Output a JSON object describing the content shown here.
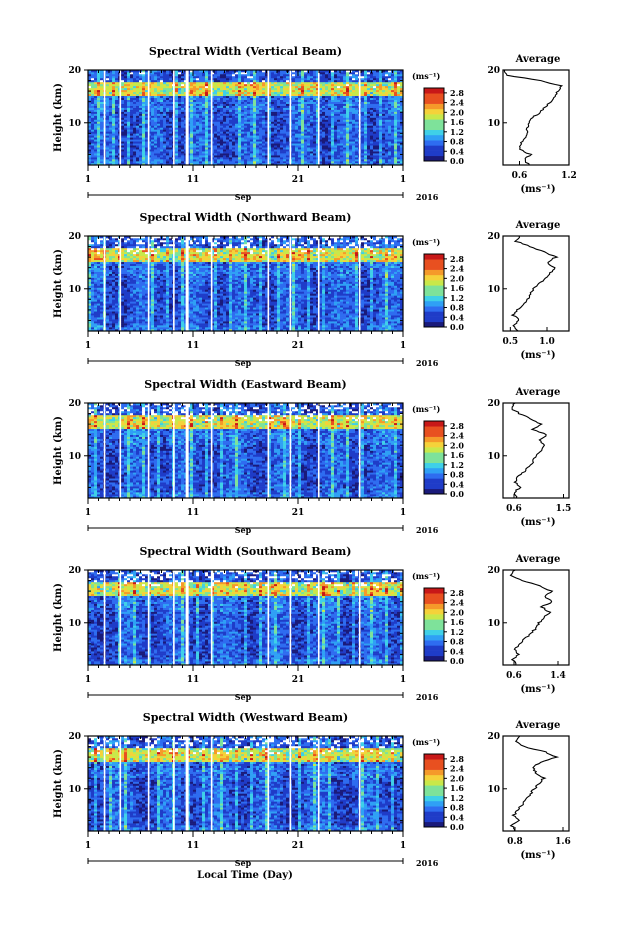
{
  "figure": {
    "xlabel": "Local Time (Day)",
    "month_label": "Sep",
    "year_label": "2016",
    "x_tick_labels": [
      "1",
      "11",
      "21",
      "1"
    ],
    "ylabel": "Height (km)",
    "unit_label": "(ms⁻¹)",
    "average_title": "Average",
    "average_xlabel": "(ms⁻¹)",
    "colorbar_ticks": [
      "0.0",
      "0.4",
      "0.8",
      "1.2",
      "1.6",
      "2.0",
      "2.4",
      "2.8"
    ],
    "colormap": [
      "#1a1a7a",
      "#1f3cc8",
      "#2e6cf0",
      "#2fa0f5",
      "#3fd0e8",
      "#7ee29a",
      "#c9e84a",
      "#f5d23a",
      "#f59a2a",
      "#e85020",
      "#c81818"
    ]
  },
  "chart_data": [
    {
      "type": "heatmap",
      "title": "Spectral Width (Vertical Beam)",
      "x_range": [
        "Sep 1 2016",
        "Oct 1 2016"
      ],
      "y_range_km": [
        2,
        20
      ],
      "y_tick_labels": [
        "10",
        "20"
      ],
      "color_range": [
        0.0,
        3.0
      ],
      "average": {
        "x_tick_labels": [
          "0.6",
          "1.2"
        ],
        "xlim": [
          0.4,
          1.2
        ],
        "height_km": [
          2,
          3,
          4,
          5,
          6,
          7,
          8,
          9,
          10,
          11,
          12,
          13,
          14,
          15,
          16,
          17,
          18,
          19,
          20
        ],
        "value": [
          0.72,
          0.66,
          0.73,
          0.6,
          0.62,
          0.66,
          0.68,
          0.7,
          0.72,
          0.76,
          0.85,
          0.92,
          0.98,
          1.02,
          1.07,
          1.1,
          0.85,
          0.45,
          0.42
        ]
      }
    },
    {
      "type": "heatmap",
      "title": "Spectral Width (Northward Beam)",
      "x_range": [
        "Sep 1 2016",
        "Oct 1 2016"
      ],
      "y_range_km": [
        2,
        20
      ],
      "y_tick_labels": [
        "10",
        "20"
      ],
      "color_range": [
        0.0,
        3.0
      ],
      "average": {
        "x_tick_labels": [
          "0.5",
          "1.0"
        ],
        "xlim": [
          0.4,
          1.3
        ],
        "height_km": [
          2,
          3,
          4,
          5,
          6,
          7,
          8,
          9,
          10,
          11,
          12,
          13,
          14,
          15,
          16,
          17,
          18,
          19,
          20
        ],
        "value": [
          0.6,
          0.55,
          0.62,
          0.54,
          0.6,
          0.68,
          0.74,
          0.78,
          0.82,
          0.9,
          0.98,
          1.05,
          1.1,
          1.0,
          1.12,
          0.95,
          0.78,
          0.58,
          0.62
        ]
      }
    },
    {
      "type": "heatmap",
      "title": "Spectral Width (Eastward Beam)",
      "x_range": [
        "Sep 1 2016",
        "Oct 1 2016"
      ],
      "y_range_km": [
        2,
        20
      ],
      "y_tick_labels": [
        "10",
        "20"
      ],
      "color_range": [
        0.0,
        3.0
      ],
      "average": {
        "x_tick_labels": [
          "0.6",
          "1.5"
        ],
        "xlim": [
          0.4,
          1.6
        ],
        "height_km": [
          2,
          3,
          4,
          5,
          6,
          7,
          8,
          9,
          10,
          11,
          12,
          13,
          14,
          15,
          16,
          17,
          18,
          19,
          20
        ],
        "value": [
          0.66,
          0.6,
          0.7,
          0.62,
          0.68,
          0.78,
          0.88,
          0.95,
          1.0,
          1.08,
          1.15,
          1.05,
          1.2,
          0.95,
          1.1,
          0.9,
          0.7,
          0.55,
          0.62
        ]
      }
    },
    {
      "type": "heatmap",
      "title": "Spectral Width (Southward Beam)",
      "x_range": [
        "Sep 1 2016",
        "Oct 1 2016"
      ],
      "y_range_km": [
        2,
        20
      ],
      "y_tick_labels": [
        "10",
        "20"
      ],
      "color_range": [
        0.0,
        3.0
      ],
      "average": {
        "x_tick_labels": [
          "0.6",
          "1.4"
        ],
        "xlim": [
          0.4,
          1.6
        ],
        "height_km": [
          2,
          3,
          4,
          5,
          6,
          7,
          8,
          9,
          10,
          11,
          12,
          13,
          14,
          15,
          16,
          17,
          18,
          19,
          20
        ],
        "value": [
          0.64,
          0.58,
          0.68,
          0.62,
          0.7,
          0.8,
          0.9,
          1.0,
          1.05,
          1.15,
          1.25,
          1.1,
          1.3,
          1.15,
          1.28,
          1.05,
          0.75,
          0.55,
          0.62
        ]
      }
    },
    {
      "type": "heatmap",
      "title": "Spectral Width (Westward Beam)",
      "x_range": [
        "Sep 1 2016",
        "Oct 1 2016"
      ],
      "y_range_km": [
        2,
        20
      ],
      "y_tick_labels": [
        "10",
        "20"
      ],
      "color_range": [
        0.0,
        3.0
      ],
      "average": {
        "x_tick_labels": [
          "0.8",
          "1.6"
        ],
        "xlim": [
          0.6,
          1.7
        ],
        "height_km": [
          2,
          3,
          4,
          5,
          6,
          7,
          8,
          9,
          10,
          11,
          12,
          13,
          14,
          15,
          16,
          17,
          18,
          19,
          20
        ],
        "value": [
          0.8,
          0.75,
          0.85,
          0.78,
          0.85,
          0.92,
          1.0,
          1.06,
          1.12,
          1.2,
          1.28,
          1.15,
          1.1,
          1.22,
          1.5,
          1.3,
          0.95,
          0.82,
          0.88
        ]
      }
    }
  ]
}
